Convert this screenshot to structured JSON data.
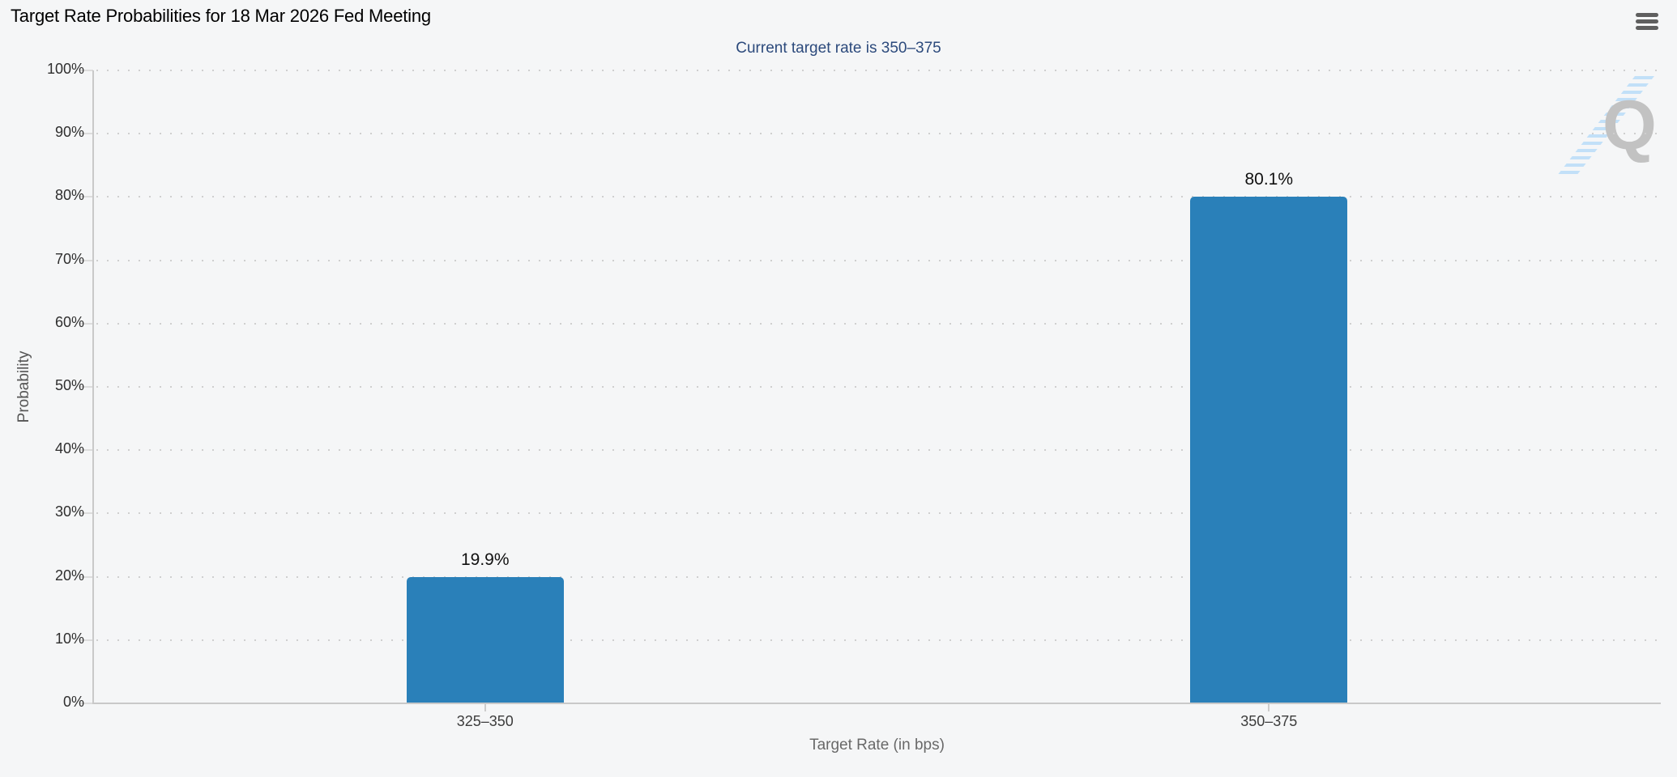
{
  "menu": {
    "icon": "hamburger-icon"
  },
  "watermark": {
    "letter": "Q"
  },
  "chart_data": {
    "type": "bar",
    "title": "Target Rate Probabilities for 18 Mar 2026 Fed Meeting",
    "subtitle": "Current target rate is 350–375",
    "categories": [
      "325–350",
      "350–375"
    ],
    "values": [
      19.9,
      80.1
    ],
    "value_labels": [
      "19.9%",
      "80.1%"
    ],
    "series": [
      {
        "name": "Probability",
        "values": [
          19.9,
          80.1
        ]
      }
    ],
    "xlabel": "Target Rate (in bps)",
    "ylabel": "Probability",
    "ylim": [
      0,
      100
    ],
    "ytick_step": 10,
    "ytick_labels": [
      "0%",
      "10%",
      "20%",
      "30%",
      "40%",
      "50%",
      "60%",
      "70%",
      "80%",
      "90%",
      "100%"
    ],
    "grid": "horizontal-dotted",
    "legend": "none",
    "bar_color": "#2a80b9",
    "colors": {
      "subtitle_text": "#2c4a7c",
      "title_text": "#000000",
      "axis_line": "#c9c9c9",
      "grid_dot": "#cfcfcf",
      "tick_label": "#2e2e2e",
      "axis_title": "#696969",
      "background": "#f5f6f7",
      "watermark_q": "#c2c2c2",
      "watermark_swoosh": "#b9dcf8",
      "menu_icon": "#5f5f5f"
    }
  }
}
